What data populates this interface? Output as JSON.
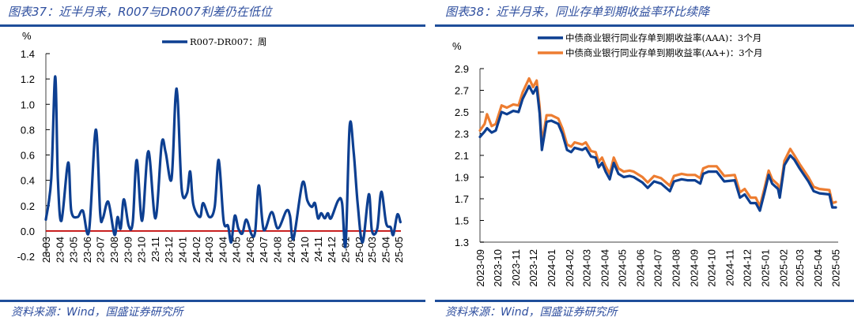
{
  "left_panel": {
    "title": "图表37：近半月来，R007与DR007利差仍在低位",
    "source": "资料来源：Wind，国盛证券研究所"
  },
  "right_panel": {
    "title": "图表38：近半月来，同业存单到期收益率环比续降",
    "source": "资料来源：Wind，国盛证券研究所"
  },
  "chart_data": [
    {
      "type": "line",
      "ylabel": "%",
      "ylim": [
        -0.2,
        1.4
      ],
      "yticks": [
        "1.4",
        "1.2",
        "1.0",
        "0.8",
        "0.6",
        "0.4",
        "0.2",
        "0.0",
        "-0.2"
      ],
      "xlim": [
        "2023-03-01",
        "2025-05-06"
      ],
      "categories": [
        "23-03",
        "23-04",
        "23-05",
        "23-06",
        "23-07",
        "23-08",
        "23-09",
        "23-10",
        "23-11",
        "23-12",
        "24-01",
        "24-02",
        "24-03",
        "24-04",
        "24-05",
        "24-06",
        "24-07",
        "24-08",
        "24-09",
        "24-10",
        "24-11",
        "24-12",
        "25-01",
        "25-02",
        "25-03",
        "25-04",
        "25-05"
      ],
      "reference_line": {
        "y": 0,
        "color": "#c00000"
      },
      "grid": false,
      "legend_position": "top",
      "series": [
        {
          "name": "R007-DR007：周",
          "color": "#0d3f91",
          "x": [
            "2023-03-01",
            "2023-03-13",
            "2023-03-22",
            "2023-03-28",
            "2023-04-05",
            "2023-04-20",
            "2023-04-27",
            "2023-05-11",
            "2023-05-23",
            "2023-06-06",
            "2023-06-21",
            "2023-07-01",
            "2023-07-07",
            "2023-07-19",
            "2023-08-02",
            "2023-08-09",
            "2023-08-16",
            "2023-08-23",
            "2023-09-03",
            "2023-09-12",
            "2023-09-21",
            "2023-10-03",
            "2023-10-17",
            "2023-11-02",
            "2023-11-16",
            "2023-11-25",
            "2023-12-08",
            "2023-12-17",
            "2023-12-22",
            "2023-12-31",
            "2024-01-12",
            "2024-01-19",
            "2024-01-26",
            "2024-02-10",
            "2024-02-17",
            "2024-03-02",
            "2024-03-14",
            "2024-03-23",
            "2024-04-03",
            "2024-04-13",
            "2024-04-20",
            "2024-04-28",
            "2024-05-06",
            "2024-05-15",
            "2024-05-24",
            "2024-06-05",
            "2024-06-13",
            "2024-06-21",
            "2024-07-02",
            "2024-07-20",
            "2024-08-03",
            "2024-08-22",
            "2024-08-30",
            "2024-09-07",
            "2024-09-27",
            "2024-10-08",
            "2024-10-18",
            "2024-10-25",
            "2024-11-01",
            "2024-11-08",
            "2024-11-16",
            "2024-11-23",
            "2024-11-30",
            "2024-12-16",
            "2024-12-25",
            "2025-01-02",
            "2025-01-11",
            "2025-01-20",
            "2025-01-29",
            "2025-02-09",
            "2025-02-23",
            "2025-03-02",
            "2025-03-14",
            "2025-03-23",
            "2025-04-03",
            "2025-04-13",
            "2025-04-19",
            "2025-04-28",
            "2025-05-05"
          ],
          "values": [
            0.09,
            0.41,
            1.22,
            0.41,
            0.08,
            0.54,
            0.16,
            0.11,
            0.16,
            0.0,
            0.8,
            0.14,
            0.1,
            0.23,
            -0.03,
            0.11,
            0.02,
            0.25,
            0.04,
            0.07,
            0.56,
            0.08,
            0.63,
            0.1,
            0.69,
            0.62,
            0.41,
            1.05,
            1.03,
            0.33,
            0.3,
            0.47,
            0.21,
            0.11,
            0.22,
            0.11,
            0.19,
            0.56,
            0.08,
            0.04,
            -0.09,
            0.12,
            0.02,
            -0.02,
            0.09,
            -0.03,
            0.0,
            0.36,
            0.01,
            0.15,
            0.02,
            0.16,
            0.12,
            -0.06,
            0.38,
            0.24,
            0.19,
            0.22,
            0.1,
            0.14,
            0.1,
            0.14,
            0.1,
            0.24,
            0.22,
            -0.11,
            0.83,
            0.62,
            0.21,
            -0.09,
            0.29,
            0.0,
            0.02,
            0.31,
            0.06,
            0.03,
            -0.03,
            0.13,
            0.07
          ]
        }
      ]
    },
    {
      "type": "line",
      "ylabel": "%",
      "ylim": [
        1.3,
        2.9
      ],
      "yticks": [
        "2.9",
        "2.7",
        "2.5",
        "2.3",
        "2.1",
        "1.9",
        "1.7",
        "1.5",
        "1.3"
      ],
      "xlim": [
        "2023-09-01",
        "2025-05-06"
      ],
      "categories": [
        "2023-09",
        "2023-10",
        "2023-11",
        "2023-12",
        "2024-01",
        "2024-02",
        "2024-03",
        "2024-04",
        "2024-05",
        "2024-06",
        "2024-07",
        "2024-08",
        "2024-09",
        "2024-10",
        "2024-11",
        "2024-12",
        "2025-01",
        "2025-02",
        "2025-03",
        "2025-04",
        "2025-05"
      ],
      "grid": false,
      "legend_position": "top",
      "x": [
        "2023-09-01",
        "2023-09-09",
        "2023-09-13",
        "2023-09-21",
        "2023-09-28",
        "2023-10-08",
        "2023-10-17",
        "2023-10-28",
        "2023-11-06",
        "2023-11-13",
        "2023-11-24",
        "2023-12-01",
        "2023-12-07",
        "2023-12-12",
        "2023-12-16",
        "2023-12-24",
        "2024-01-01",
        "2024-01-13",
        "2024-01-20",
        "2024-01-28",
        "2024-02-04",
        "2024-02-10",
        "2024-02-23",
        "2024-02-29",
        "2024-03-09",
        "2024-03-17",
        "2024-03-22",
        "2024-03-28",
        "2024-04-03",
        "2024-04-10",
        "2024-04-17",
        "2024-04-25",
        "2024-05-04",
        "2024-05-14",
        "2024-05-21",
        "2024-06-05",
        "2024-06-14",
        "2024-06-25",
        "2024-07-07",
        "2024-07-22",
        "2024-07-29",
        "2024-08-11",
        "2024-08-21",
        "2024-09-03",
        "2024-09-12",
        "2024-09-17",
        "2024-09-26",
        "2024-10-10",
        "2024-10-23",
        "2024-11-10",
        "2024-11-19",
        "2024-11-27",
        "2024-12-07",
        "2024-12-16",
        "2024-12-23",
        "2024-12-31",
        "2025-01-07",
        "2025-01-13",
        "2025-01-23",
        "2025-01-26",
        "2025-02-03",
        "2025-02-13",
        "2025-02-20",
        "2025-03-01",
        "2025-03-16",
        "2025-03-25",
        "2025-04-04",
        "2025-04-21",
        "2025-04-26",
        "2025-05-02"
      ],
      "series": [
        {
          "name": "中债商业银行同业存单到期收益率(AAA)：3个月",
          "color": "#0d3f91",
          "values": [
            2.27,
            2.32,
            2.35,
            2.31,
            2.33,
            2.5,
            2.48,
            2.51,
            2.5,
            2.62,
            2.74,
            2.67,
            2.73,
            2.49,
            2.15,
            2.41,
            2.42,
            2.39,
            2.3,
            2.15,
            2.13,
            2.17,
            2.15,
            2.17,
            2.09,
            2.08,
            1.99,
            2.03,
            1.95,
            1.88,
            2.03,
            1.93,
            1.9,
            1.91,
            1.9,
            1.85,
            1.8,
            1.86,
            1.84,
            1.77,
            1.86,
            1.88,
            1.87,
            1.87,
            1.84,
            1.93,
            1.95,
            1.95,
            1.86,
            1.87,
            1.71,
            1.74,
            1.66,
            1.66,
            1.59,
            1.76,
            1.92,
            1.84,
            1.79,
            1.71,
            2.01,
            2.1,
            2.06,
            1.98,
            1.86,
            1.77,
            1.75,
            1.74,
            1.62,
            1.62
          ]
        },
        {
          "name": "中债商业银行同业存单到期收益率(AA+)：3个月",
          "color": "#ed7d31",
          "values": [
            2.33,
            2.39,
            2.48,
            2.37,
            2.39,
            2.56,
            2.54,
            2.57,
            2.56,
            2.68,
            2.81,
            2.73,
            2.79,
            2.55,
            2.21,
            2.47,
            2.47,
            2.44,
            2.35,
            2.2,
            2.18,
            2.22,
            2.2,
            2.22,
            2.14,
            2.13,
            2.04,
            2.08,
            2.0,
            1.93,
            2.08,
            1.98,
            1.95,
            1.96,
            1.95,
            1.9,
            1.85,
            1.91,
            1.89,
            1.82,
            1.91,
            1.93,
            1.92,
            1.92,
            1.89,
            1.98,
            2.0,
            2.0,
            1.91,
            1.92,
            1.76,
            1.79,
            1.71,
            1.71,
            1.63,
            1.8,
            1.96,
            1.88,
            1.83,
            1.75,
            2.05,
            2.16,
            2.1,
            2.02,
            1.9,
            1.81,
            1.79,
            1.78,
            1.66,
            1.67
          ]
        }
      ]
    }
  ]
}
